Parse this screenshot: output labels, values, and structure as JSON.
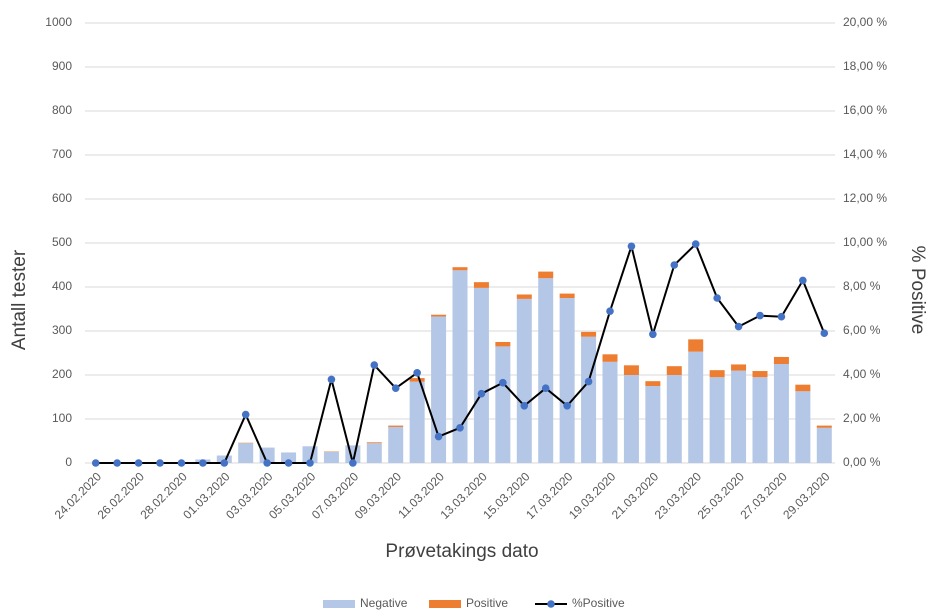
{
  "chart_data": {
    "type": "bar_line",
    "x_label": "Prøvetakings dato",
    "y_label": "Antall tester",
    "y2_label": "% Positive",
    "categories": [
      "24.02.2020",
      null,
      "26.02.2020",
      null,
      "28.02.2020",
      null,
      "01.03.2020",
      null,
      "03.03.2020",
      null,
      "05.03.2020",
      null,
      "07.03.2020",
      null,
      "09.03.2020",
      null,
      "11.03.2020",
      null,
      "13.03.2020",
      null,
      "15.03.2020",
      null,
      "17.03.2020",
      null,
      "19.03.2020",
      null,
      "21.03.2020",
      null,
      "23.03.2020",
      null,
      "25.03.2020",
      null,
      "27.03.2020",
      null,
      "29.03.2020"
    ],
    "series": [
      {
        "name": "Negative",
        "color": "#b4c7e7",
        "values": [
          0,
          0,
          0,
          0,
          0,
          8,
          17,
          45,
          35,
          24,
          38,
          25,
          40,
          45,
          82,
          185,
          333,
          438,
          398,
          265,
          373,
          420,
          375,
          287,
          230,
          200,
          175,
          200,
          253,
          195,
          210,
          195,
          225,
          163,
          80
        ]
      },
      {
        "name": "Positive",
        "color": "#ed7d31",
        "values": [
          0,
          0,
          0,
          0,
          0,
          0,
          0,
          1,
          0,
          0,
          0,
          1,
          0,
          2,
          3,
          8,
          4,
          7,
          13,
          10,
          10,
          15,
          10,
          11,
          17,
          22,
          11,
          20,
          28,
          16,
          14,
          14,
          16,
          15,
          5
        ]
      },
      {
        "name": "%Positive",
        "color": "#000000",
        "marker_color": "#4472c4",
        "axis": "y2",
        "values": [
          0,
          0,
          0,
          0,
          0,
          0,
          0,
          2.2,
          0,
          0,
          0,
          3.8,
          0,
          4.45,
          3.4,
          4.1,
          1.2,
          1.6,
          3.15,
          3.65,
          2.6,
          3.4,
          2.6,
          3.7,
          6.9,
          9.85,
          5.85,
          9.0,
          9.95,
          7.5,
          6.2,
          6.7,
          6.65,
          8.3,
          5.9
        ]
      }
    ],
    "ylim": [
      0,
      1000
    ],
    "yticks": [
      0,
      100,
      200,
      300,
      400,
      500,
      600,
      700,
      800,
      900,
      1000
    ],
    "y2lim": [
      0,
      20
    ],
    "y2ticks": [
      {
        "value": 0,
        "label": "0,00 %"
      },
      {
        "value": 2,
        "label": "2,00 %"
      },
      {
        "value": 4,
        "label": "4,00 %"
      },
      {
        "value": 6,
        "label": "6,00 %"
      },
      {
        "value": 8,
        "label": "8,00 %"
      },
      {
        "value": 10,
        "label": "10,00 %"
      },
      {
        "value": 12,
        "label": "12,00 %"
      },
      {
        "value": 14,
        "label": "14,00 %"
      },
      {
        "value": 16,
        "label": "16,00 %"
      },
      {
        "value": 18,
        "label": "18,00 %"
      },
      {
        "value": 20,
        "label": "20,00 %"
      }
    ],
    "grid": true,
    "legend": "bottom"
  }
}
